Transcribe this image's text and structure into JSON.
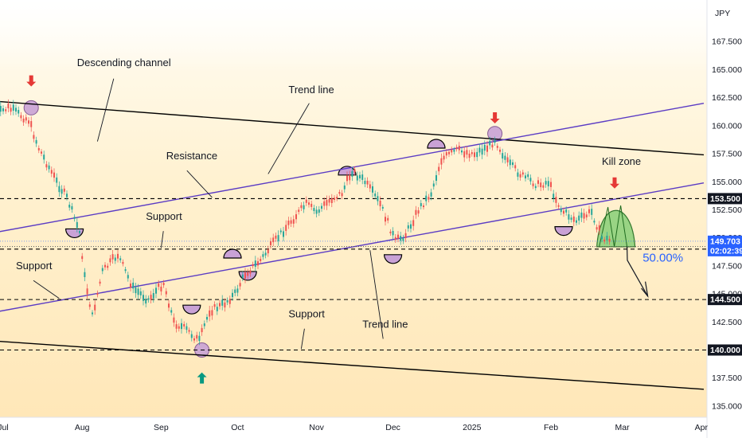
{
  "chart_data": {
    "type": "line",
    "title": "",
    "currency_label": "JPY",
    "ylim": [
      134.0,
      170.5
    ],
    "x_range": [
      "2024-07-01",
      "2025-04-02"
    ],
    "y_ticks": [
      135.0,
      137.5,
      140.0,
      142.5,
      145.0,
      147.5,
      150.0,
      152.5,
      155.0,
      157.5,
      160.0,
      162.5,
      165.0,
      167.5
    ],
    "y_tick_labels": [
      "135.000",
      "137.500",
      "140.000",
      "142.500",
      "145.000",
      "147.500",
      "150.000",
      "152.500",
      "155.000",
      "157.500",
      "160.000",
      "162.500",
      "165.000",
      "167.500"
    ],
    "x_ticks": [
      {
        "date": "2024-07-01",
        "label": "Jul"
      },
      {
        "date": "2024-08-01",
        "label": "Aug"
      },
      {
        "date": "2024-09-01",
        "label": "Sep"
      },
      {
        "date": "2024-10-01",
        "label": "Oct"
      },
      {
        "date": "2024-11-01",
        "label": "Nov"
      },
      {
        "date": "2024-12-01",
        "label": "Dec"
      },
      {
        "date": "2025-01-01",
        "label": "2025"
      },
      {
        "date": "2025-02-01",
        "label": "Feb"
      },
      {
        "date": "2025-03-01",
        "label": "Mar"
      },
      {
        "date": "2025-04-01",
        "label": "Apr"
      }
    ],
    "price_series": {
      "dates": [
        "2024-06-28",
        "2024-07-03",
        "2024-07-11",
        "2024-07-15",
        "2024-07-22",
        "2024-07-26",
        "2024-07-31",
        "2024-08-02",
        "2024-08-05",
        "2024-08-09",
        "2024-08-15",
        "2024-08-21",
        "2024-08-27",
        "2024-09-02",
        "2024-09-06",
        "2024-09-11",
        "2024-09-16",
        "2024-09-20",
        "2024-09-25",
        "2024-09-30",
        "2024-10-04",
        "2024-10-10",
        "2024-10-16",
        "2024-10-22",
        "2024-10-28",
        "2024-11-01",
        "2024-11-07",
        "2024-11-11",
        "2024-11-15",
        "2024-11-20",
        "2024-11-26",
        "2024-12-02",
        "2024-12-06",
        "2024-12-11",
        "2024-12-16",
        "2024-12-20",
        "2024-12-26",
        "2025-01-02",
        "2025-01-08",
        "2025-01-10",
        "2025-01-15",
        "2025-01-21",
        "2025-01-27",
        "2025-01-31",
        "2025-02-05",
        "2025-02-11",
        "2025-02-17",
        "2025-02-21",
        "2025-02-25"
      ],
      "values": [
        161.0,
        161.6,
        160.5,
        158.0,
        155.0,
        153.6,
        150.5,
        146.5,
        143.0,
        147.0,
        148.5,
        145.5,
        144.5,
        146.0,
        142.5,
        141.8,
        140.8,
        143.5,
        144.0,
        145.0,
        146.8,
        148.0,
        149.8,
        151.5,
        153.0,
        152.3,
        153.5,
        154.0,
        156.0,
        155.0,
        153.0,
        149.7,
        150.3,
        152.5,
        154.0,
        157.0,
        157.8,
        157.5,
        158.2,
        158.8,
        156.7,
        155.5,
        154.7,
        155.0,
        152.5,
        151.5,
        152.3,
        150.0,
        149.7
      ]
    },
    "horizontal_levels": [
      {
        "value": 153.5,
        "label": "153.500"
      },
      {
        "value": 149.0,
        "label": "149.000"
      },
      {
        "value": 144.5,
        "label": "144.500"
      },
      {
        "value": 140.0,
        "label": "140.000"
      }
    ],
    "current_price": {
      "value": 149.703,
      "label": "149.703",
      "countdown": "02:02:39",
      "color": "#2962ff"
    },
    "prev_close": {
      "value": 149.226,
      "label": "149.226"
    },
    "channel_lines": [
      {
        "name": "upper-channel",
        "from": {
          "date": "2024-06-21",
          "value": 162.3
        },
        "to": {
          "date": "2025-04-02",
          "value": 157.4
        }
      },
      {
        "name": "lower-channel",
        "from": {
          "date": "2024-06-21",
          "value": 140.9
        },
        "to": {
          "date": "2025-04-02",
          "value": 136.5
        }
      }
    ],
    "trend_lines": [
      {
        "name": "upper-trend",
        "from": {
          "date": "2024-06-21",
          "value": 150.2
        },
        "to": {
          "date": "2025-04-02",
          "value": 162.0
        }
      },
      {
        "name": "lower-trend",
        "from": {
          "date": "2024-06-21",
          "value": 143.1
        },
        "to": {
          "date": "2025-04-02",
          "value": 154.9
        }
      }
    ],
    "retracement_label": "50.00%",
    "annotations": [
      {
        "text": "Descending channel",
        "date": "2024-07-30",
        "value": 165.3
      },
      {
        "text": "Trend line",
        "date": "2024-10-21",
        "value": 162.9
      },
      {
        "text": "Resistance",
        "date": "2024-09-03",
        "value": 157.0
      },
      {
        "text": "Support",
        "date": "2024-08-26",
        "value": 151.6
      },
      {
        "text": "Support",
        "date": "2024-07-06",
        "value": 147.2
      },
      {
        "text": "Support",
        "date": "2024-10-21",
        "value": 142.9
      },
      {
        "text": "Trend line",
        "date": "2024-11-19",
        "value": 142.0
      },
      {
        "text": "Kill zone",
        "date": "2025-02-21",
        "value": 156.5
      }
    ],
    "markers": [
      {
        "type": "arrow-down",
        "date": "2024-07-12",
        "value": 163.5,
        "color": "#e53935"
      },
      {
        "type": "arrow-down",
        "date": "2025-01-10",
        "value": 160.2,
        "color": "#e53935"
      },
      {
        "type": "arrow-down",
        "date": "2025-02-26",
        "value": 154.4,
        "color": "#e53935"
      },
      {
        "type": "arrow-up",
        "date": "2024-09-17",
        "value": 138.0,
        "color": "#089981"
      }
    ],
    "colors": {
      "level_line": "#000000",
      "trend_line": "#5b3cc4",
      "channel_line": "#000000",
      "kill_zone": "#8fd27d",
      "touch_circle": "#c9a2d6"
    }
  }
}
